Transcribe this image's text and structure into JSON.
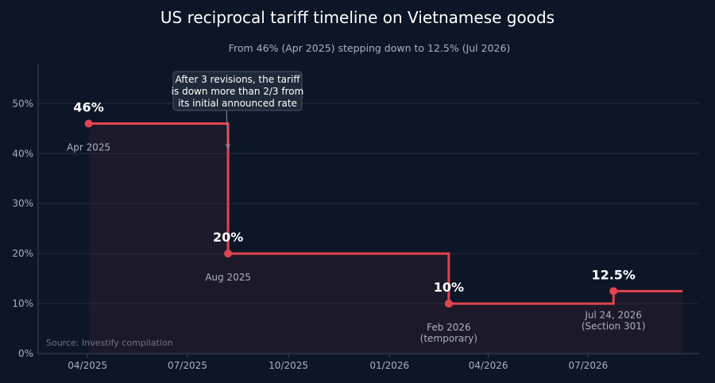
{
  "chart_data": {
    "type": "line",
    "step": "post",
    "title": "US reciprocal tariff timeline on Vietnamese goods",
    "subtitle": "From 46% (Apr 2025) stepping down to 12.5% (Jul 2026)",
    "xlabel": "",
    "ylabel": "",
    "x_ticks": [
      "04/2025",
      "07/2025",
      "10/2025",
      "01/2026",
      "04/2026",
      "07/2026"
    ],
    "x_tick_dates": [
      "2025-04-01",
      "2025-07-01",
      "2025-10-01",
      "2026-01-01",
      "2026-04-01",
      "2026-07-01"
    ],
    "y_ticks": [
      "0%",
      "10%",
      "20%",
      "30%",
      "40%",
      "50%"
    ],
    "y_tick_values": [
      0,
      10,
      20,
      30,
      40,
      50
    ],
    "ylim": [
      0,
      58
    ],
    "xlim": [
      "2025-02-15",
      "2026-10-10"
    ],
    "grid": "horizontal",
    "legend": "none",
    "series": [
      {
        "color": "#e04450",
        "points": [
          {
            "date": "2025-04-02",
            "value": 46,
            "value_label": "46%",
            "date_label": "Apr 2025"
          },
          {
            "date": "2025-08-07",
            "value": 20,
            "value_label": "20%",
            "date_label": "Aug 2025"
          },
          {
            "date": "2026-02-24",
            "value": 10,
            "value_label": "10%",
            "date_label": "Feb 2026\n(temporary)"
          },
          {
            "date": "2026-07-24",
            "value": 12.5,
            "value_label": "12.5%",
            "date_label": "Jul 24, 2026\n(Section 301)"
          }
        ],
        "end_date": "2026-09-25"
      }
    ],
    "annotation": {
      "text": "After 3 revisions, the tariff\nis down more than 2/3 from\nits initial announced rate",
      "target_date": "2025-08-07",
      "target_value": 41
    },
    "source": "Source: Investify compilation"
  },
  "colors": {
    "background": "#0d1627",
    "line": "#e04450",
    "fill": "#e04450",
    "grid": "#1f2a3d",
    "axis": "#3a4558",
    "text_muted": "#a9b1bf"
  }
}
